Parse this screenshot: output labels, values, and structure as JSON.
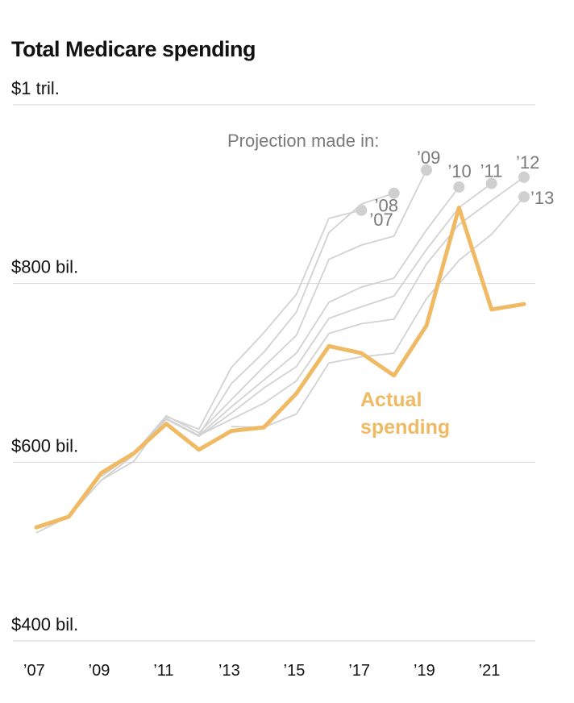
{
  "chart_data": {
    "type": "line",
    "title": "Total Medicare spending",
    "unit_labels": [
      "$1 tril.",
      "$800 bil.",
      "$600 bil.",
      "$400 bil."
    ],
    "y_ticks": [
      1000,
      800,
      600,
      400
    ],
    "ylim": [
      400,
      1000
    ],
    "xlim": [
      2007,
      2022.2
    ],
    "x_ticks": [
      2007,
      2009,
      2011,
      2013,
      2015,
      2017,
      2019,
      2021
    ],
    "x_tick_labels": [
      "’07",
      "’09",
      "’11",
      "’13",
      "’15",
      "’17",
      "’19",
      "’21"
    ],
    "legend_title": "Projection made in:",
    "actual_label_lines": [
      "Actual",
      "spending"
    ],
    "actual_color": "#efba63",
    "projection_color": "#d2d2d2",
    "series": [
      {
        "name": "Actual spending",
        "kind": "actual",
        "x": [
          2007,
          2008,
          2009,
          2010,
          2011,
          2012,
          2013,
          2014,
          2015,
          2016,
          2017,
          2018,
          2019,
          2020,
          2021,
          2022
        ],
        "values": [
          527,
          539,
          588,
          610,
          643,
          614,
          635,
          639,
          677,
          730,
          722,
          697,
          753,
          885,
          771,
          777
        ]
      },
      {
        "name": "’07",
        "kind": "projection",
        "label": "’07",
        "x": [
          2007,
          2008,
          2009,
          2010,
          2011,
          2012,
          2013,
          2014,
          2015,
          2016,
          2017
        ],
        "values": [
          521,
          539,
          580,
          601,
          651,
          637,
          706,
          745,
          788,
          873,
          882
        ]
      },
      {
        "name": "’08",
        "kind": "projection",
        "label": "’08",
        "x": [
          2008,
          2009,
          2010,
          2011,
          2012,
          2013,
          2014,
          2015,
          2016,
          2017,
          2018
        ],
        "values": [
          539,
          580,
          608,
          649,
          630,
          688,
          723,
          768,
          857,
          889,
          901
        ]
      },
      {
        "name": "’09",
        "kind": "projection",
        "label": "’09",
        "x": [
          2009,
          2010,
          2011,
          2012,
          2013,
          2014,
          2015,
          2016,
          2017,
          2018,
          2019
        ],
        "values": [
          584,
          610,
          652,
          633,
          670,
          707,
          742,
          827,
          843,
          853,
          927
        ]
      },
      {
        "name": "’10",
        "kind": "projection",
        "label": "’10",
        "x": [
          2010,
          2011,
          2012,
          2013,
          2014,
          2015,
          2016,
          2017,
          2018,
          2019,
          2020
        ],
        "values": [
          610,
          648,
          630,
          662,
          692,
          722,
          779,
          796,
          806,
          860,
          908
        ]
      },
      {
        "name": "’11",
        "kind": "projection",
        "label": "’11",
        "x": [
          2011,
          2012,
          2013,
          2014,
          2015,
          2016,
          2017,
          2018,
          2019,
          2020,
          2021
        ],
        "values": [
          648,
          629,
          655,
          683,
          707,
          761,
          774,
          786,
          838,
          885,
          912
        ]
      },
      {
        "name": "’12",
        "kind": "projection",
        "label": "’12",
        "x": [
          2012,
          2013,
          2014,
          2015,
          2016,
          2017,
          2018,
          2019,
          2020,
          2021,
          2022
        ],
        "values": [
          630,
          648,
          666,
          691,
          744,
          755,
          760,
          822,
          866,
          893,
          919
        ]
      },
      {
        "name": "’13",
        "kind": "projection",
        "label": "’13",
        "x": [
          2013,
          2014,
          2015,
          2016,
          2017,
          2018,
          2019,
          2020,
          2021,
          2022
        ],
        "values": [
          640,
          639,
          654,
          711,
          718,
          722,
          783,
          826,
          855,
          897
        ]
      }
    ]
  }
}
